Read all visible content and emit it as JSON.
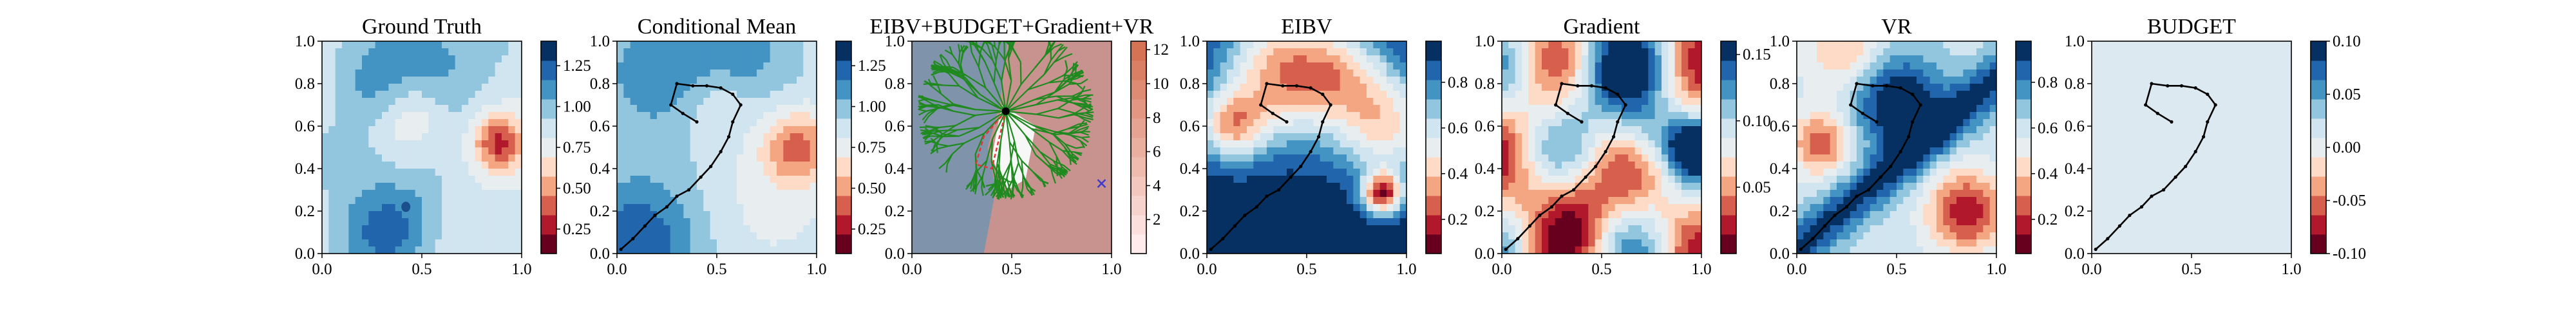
{
  "colors": {
    "rdbu": [
      "#67001f",
      "#b2182b",
      "#d6604d",
      "#f4a582",
      "#fddbc7",
      "#e8edf0",
      "#d1e5f0",
      "#92c5de",
      "#4393c3",
      "#2166ac",
      "#053061"
    ],
    "gt_blue": "#4a8cc0",
    "path": "#000000",
    "tree": "#1f8a1f",
    "selected": "#e8323c",
    "budget_bg": "#dce9f1",
    "left_region": "#7f93aa",
    "right_region": "#c8938f"
  },
  "chart_data": [
    {
      "type": "heatmap",
      "title": "Ground Truth",
      "xlim": [
        0,
        1
      ],
      "ylim": [
        0,
        1
      ],
      "xticks": [
        "0.0",
        "0.5",
        "1.0"
      ],
      "yticks": [
        "0.0",
        "0.2",
        "0.4",
        "0.6",
        "0.8",
        "1.0"
      ],
      "colorbar": {
        "ticks": [
          "0.25",
          "0.50",
          "0.75",
          "1.00",
          "1.25"
        ],
        "range": [
          0.1,
          1.4
        ]
      },
      "grid": false,
      "show_path": false
    },
    {
      "type": "heatmap",
      "title": "Conditional Mean",
      "xlim": [
        0,
        1
      ],
      "ylim": [
        0,
        1
      ],
      "xticks": [
        "0.0",
        "0.5",
        "1.0"
      ],
      "yticks": [
        "0.0",
        "0.2",
        "0.4",
        "0.6",
        "0.8",
        "1.0"
      ],
      "colorbar": {
        "ticks": [
          "0.25",
          "0.50",
          "0.75",
          "1.00",
          "1.25"
        ],
        "range": [
          0.1,
          1.4
        ]
      },
      "grid": false,
      "show_path": true
    },
    {
      "type": "heatmap",
      "title": "EIBV+BUDGET+Gradient+VR",
      "xlim": [
        0,
        1
      ],
      "ylim": [
        0,
        1
      ],
      "xticks": [
        "0.0",
        "0.5",
        "1.0"
      ],
      "yticks": [
        "0.0",
        "0.2",
        "0.4",
        "0.6",
        "0.8",
        "1.0"
      ],
      "colorbar": {
        "ticks": [
          "2",
          "4",
          "6",
          "8",
          "10",
          "12"
        ],
        "range": [
          0,
          12.5
        ]
      },
      "grid": false,
      "show_path": false,
      "current_location": [
        0.47,
        0.67
      ],
      "selected_path": [
        [
          0.47,
          0.67
        ],
        [
          0.36,
          0.55
        ],
        [
          0.32,
          0.42
        ],
        [
          0.4,
          0.4
        ],
        [
          0.47,
          0.67
        ]
      ],
      "next_target": [
        0.95,
        0.33
      ]
    },
    {
      "type": "heatmap",
      "title": "EIBV",
      "xlim": [
        0,
        1
      ],
      "ylim": [
        0,
        1
      ],
      "xticks": [
        "0.0",
        "0.5",
        "1.0"
      ],
      "yticks": [
        "0.0",
        "0.2",
        "0.4",
        "0.6",
        "0.8",
        "1.0"
      ],
      "colorbar": {
        "ticks": [
          "0.2",
          "0.4",
          "0.6",
          "0.8"
        ],
        "range": [
          0.05,
          0.98
        ]
      },
      "grid": false,
      "show_path": true
    },
    {
      "type": "heatmap",
      "title": "Gradient",
      "xlim": [
        0,
        1
      ],
      "ylim": [
        0,
        1
      ],
      "xticks": [
        "0.0",
        "0.5",
        "1.0"
      ],
      "yticks": [
        "0.0",
        "0.2",
        "0.4",
        "0.6",
        "0.8",
        "1.0"
      ],
      "colorbar": {
        "ticks": [
          "0.05",
          "0.10",
          "0.15"
        ],
        "range": [
          0.0,
          0.16
        ]
      },
      "grid": false,
      "show_path": true
    },
    {
      "type": "heatmap",
      "title": "VR",
      "xlim": [
        0,
        1
      ],
      "ylim": [
        0,
        1
      ],
      "xticks": [
        "0.0",
        "0.5",
        "1.0"
      ],
      "yticks": [
        "0.0",
        "0.2",
        "0.4",
        "0.6",
        "0.8",
        "1.0"
      ],
      "colorbar": {
        "ticks": [
          "0.2",
          "0.4",
          "0.6",
          "0.8"
        ],
        "range": [
          0.05,
          0.98
        ]
      },
      "grid": false,
      "show_path": true
    },
    {
      "type": "heatmap",
      "title": "BUDGET",
      "xlim": [
        0,
        1
      ],
      "ylim": [
        0,
        1
      ],
      "xticks": [
        "0.0",
        "0.5",
        "1.0"
      ],
      "yticks": [
        "0.0",
        "0.2",
        "0.4",
        "0.6",
        "0.8",
        "1.0"
      ],
      "colorbar": {
        "ticks": [
          "-0.10",
          "-0.05",
          "0.00",
          "0.05",
          "0.10"
        ],
        "range": [
          -0.1,
          0.1
        ]
      },
      "grid": false,
      "show_path": true
    }
  ],
  "trajectory": [
    [
      0.02,
      0.02
    ],
    [
      0.08,
      0.07
    ],
    [
      0.14,
      0.13
    ],
    [
      0.19,
      0.18
    ],
    [
      0.25,
      0.22
    ],
    [
      0.3,
      0.27
    ],
    [
      0.36,
      0.3
    ],
    [
      0.42,
      0.36
    ],
    [
      0.47,
      0.41
    ],
    [
      0.52,
      0.48
    ],
    [
      0.56,
      0.55
    ],
    [
      0.58,
      0.62
    ],
    [
      0.62,
      0.7
    ],
    [
      0.58,
      0.75
    ],
    [
      0.52,
      0.78
    ],
    [
      0.45,
      0.79
    ],
    [
      0.38,
      0.79
    ],
    [
      0.3,
      0.8
    ],
    [
      0.27,
      0.7
    ],
    [
      0.33,
      0.66
    ],
    [
      0.4,
      0.62
    ]
  ]
}
